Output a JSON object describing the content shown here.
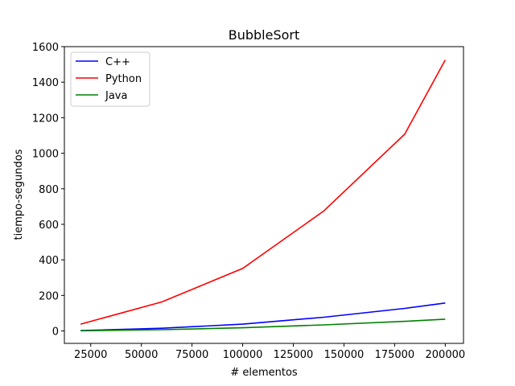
{
  "chart_data": {
    "type": "line",
    "title": "BubbleSort",
    "xlabel": "# elementos",
    "ylabel": "tiempo-segundos",
    "xlim": [
      12000,
      209000
    ],
    "ylim": [
      -70,
      1600
    ],
    "xticks": [
      25000,
      50000,
      75000,
      100000,
      125000,
      150000,
      175000,
      200000
    ],
    "yticks": [
      0,
      200,
      400,
      600,
      800,
      1000,
      1200,
      1400,
      1600
    ],
    "x": [
      20000,
      60000,
      100000,
      140000,
      180000,
      200000
    ],
    "series": [
      {
        "name": "C++",
        "color": "#0000ff",
        "values": [
          2,
          15,
          38,
          77,
          127,
          157
        ]
      },
      {
        "name": "Python",
        "color": "#ff0000",
        "values": [
          38,
          163,
          352,
          675,
          1108,
          1525
        ]
      },
      {
        "name": "Java",
        "color": "#008000",
        "values": [
          1,
          7,
          18,
          34,
          54,
          66
        ]
      }
    ],
    "legend_position": "top-left",
    "grid": false
  }
}
